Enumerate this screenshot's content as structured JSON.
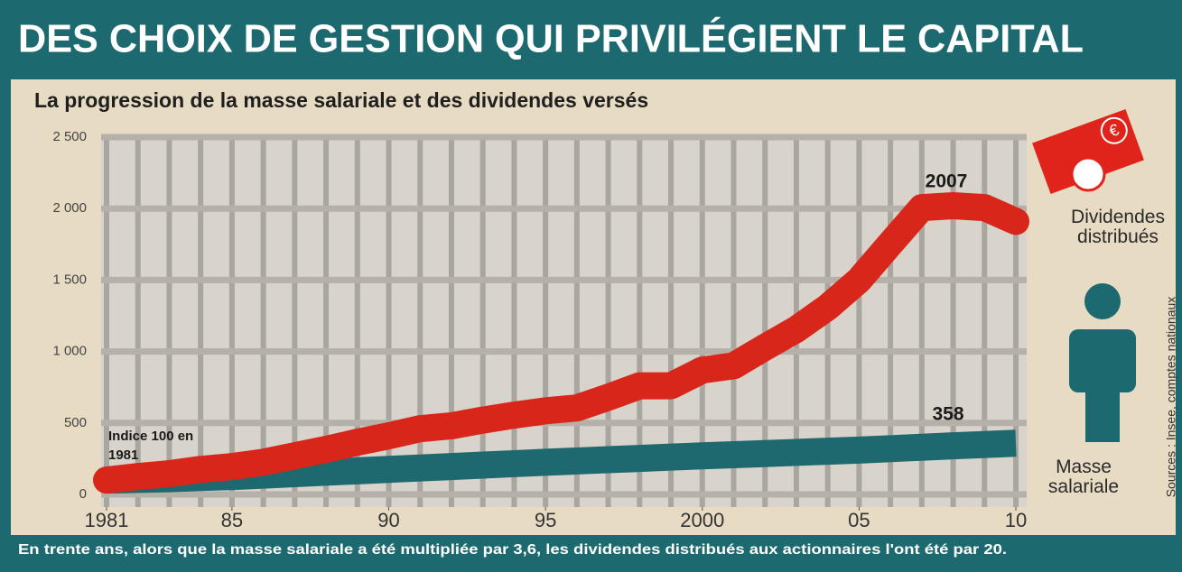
{
  "chart_data": {
    "type": "line",
    "title": "DES CHOIX DE GESTION QUI PRIVILÉGIENT LE CAPITAL",
    "subtitle": "La progression de la masse salariale et des dividendes versés",
    "footnote": "En trente ans, alors que la masse salariale a été multipliée par 3,6, les dividendes distribués aux actionnaires l'ont été par 20.",
    "source": "Sources : Insee, comptes nationaux",
    "annotations": [
      "Indice 100 en 1981",
      "2007",
      "358"
    ],
    "x": [
      1981,
      1982,
      1983,
      1984,
      1985,
      1986,
      1987,
      1988,
      1989,
      1990,
      1991,
      1992,
      1993,
      1994,
      1995,
      1996,
      1997,
      1998,
      1999,
      2000,
      2001,
      2002,
      2003,
      2004,
      2005,
      2006,
      2007,
      2008,
      2009,
      2010
    ],
    "series": [
      {
        "name": "Dividendes distribués",
        "color": "#d8261b",
        "values": [
          100,
          125,
          145,
          175,
          195,
          225,
          270,
          315,
          365,
          410,
          460,
          480,
          520,
          555,
          585,
          605,
          680,
          760,
          760,
          870,
          900,
          1030,
          1155,
          1310,
          1500,
          1755,
          2007,
          2020,
          2007,
          1910
        ]
      },
      {
        "name": "Masse salariale",
        "color": "#1e6870",
        "values": [
          100,
          105,
          110,
          118,
          125,
          135,
          145,
          155,
          165,
          175,
          185,
          195,
          205,
          215,
          225,
          234,
          243,
          252,
          261,
          270,
          278,
          286,
          294,
          302,
          310,
          320,
          330,
          340,
          349,
          358
        ]
      }
    ],
    "xlim": [
      1981,
      2010
    ],
    "xticks": [
      1981,
      {
        "value": 1985,
        "label": "85"
      },
      {
        "value": 1990,
        "label": "90"
      },
      {
        "value": 1995,
        "label": "95"
      },
      2000,
      {
        "value": 2005,
        "label": "05"
      },
      {
        "value": 2010,
        "label": "10"
      }
    ],
    "ylim": [
      0,
      2500
    ],
    "yticks": [
      0,
      500,
      {
        "value": 1000,
        "label": "1 000"
      },
      {
        "value": 1500,
        "label": "1 500"
      },
      {
        "value": 2000,
        "label": "2 000"
      },
      {
        "value": 2500,
        "label": "2 500"
      }
    ],
    "grid": true
  }
}
